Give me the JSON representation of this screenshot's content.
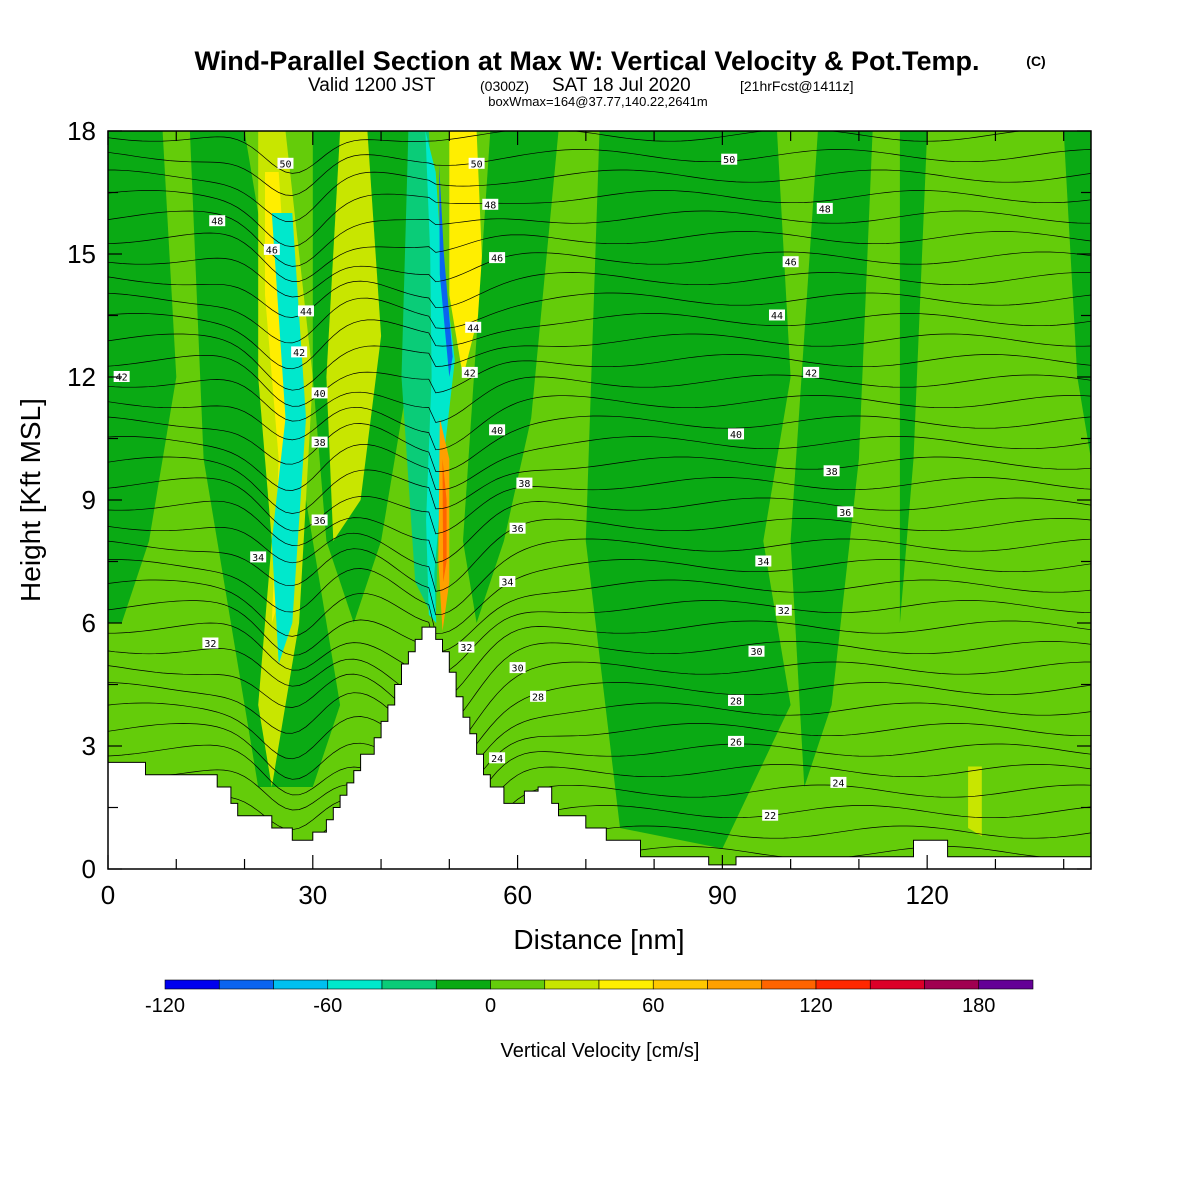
{
  "figure": {
    "title_main": "Wind-Parallel Section at Max W: Vertical Velocity & Pot.Temp.",
    "title_mark": "(C)",
    "subtitle_valid": "Valid 1200 JST",
    "subtitle_utc": "(0300Z)",
    "subtitle_date": "SAT 18 Jul 2020",
    "subtitle_fcst": "[21hrFcst@1411z]",
    "subtitle_box": "boxWmax=164@37.77,140.22,2641m"
  },
  "colorbar": {
    "label": "Vertical Velocity [cm/s]",
    "levels": [
      -120,
      -100,
      -80,
      -60,
      -40,
      -20,
      0,
      20,
      40,
      60,
      80,
      100,
      120,
      140,
      160,
      180,
      200
    ],
    "colors": [
      "#0000ee",
      "#0a64f0",
      "#00c0f0",
      "#00e8cc",
      "#0acc78",
      "#0aaa14",
      "#64cc0a",
      "#c8e600",
      "#ffee00",
      "#ffc800",
      "#ffa000",
      "#ff6400",
      "#ff2800",
      "#dc0028",
      "#a00050",
      "#640096"
    ],
    "tick_labels": [
      "-120",
      "-60",
      "0",
      "60",
      "120",
      "180"
    ]
  },
  "chart_data": {
    "type": "heatmap",
    "title": "Wind-Parallel Section at Max W: Vertical Velocity & Pot.Temp.",
    "xlabel": "Distance [nm]",
    "ylabel": "Height [Kft MSL]",
    "xlim": [
      0,
      144
    ],
    "ylim": [
      0,
      18
    ],
    "x_ticks": [
      0,
      30,
      60,
      90,
      120
    ],
    "y_ticks": [
      0,
      3,
      6,
      9,
      12,
      15,
      18
    ],
    "grid": false,
    "colorbar_label": "Vertical Velocity [cm/s]",
    "terrain_kft": [
      [
        0,
        2.6
      ],
      [
        5.5,
        2.6
      ],
      [
        5.5,
        2.3
      ],
      [
        16,
        2.3
      ],
      [
        16,
        2.0
      ],
      [
        18,
        2.0
      ],
      [
        18,
        1.6
      ],
      [
        19,
        1.6
      ],
      [
        19,
        1.3
      ],
      [
        24,
        1.3
      ],
      [
        24,
        1.0
      ],
      [
        27,
        1.0
      ],
      [
        27,
        0.7
      ],
      [
        30,
        0.7
      ],
      [
        30,
        0.9
      ],
      [
        32,
        0.9
      ],
      [
        32,
        1.2
      ],
      [
        33,
        1.2
      ],
      [
        33,
        1.5
      ],
      [
        34,
        1.5
      ],
      [
        34,
        1.8
      ],
      [
        35,
        1.8
      ],
      [
        35,
        2.1
      ],
      [
        36,
        2.1
      ],
      [
        36,
        2.4
      ],
      [
        37,
        2.4
      ],
      [
        37,
        2.8
      ],
      [
        39,
        2.8
      ],
      [
        39,
        3.2
      ],
      [
        40,
        3.2
      ],
      [
        40,
        3.6
      ],
      [
        41,
        3.6
      ],
      [
        41,
        4.0
      ],
      [
        42,
        4.0
      ],
      [
        42,
        4.5
      ],
      [
        43,
        4.5
      ],
      [
        43,
        5.0
      ],
      [
        44,
        5.0
      ],
      [
        44,
        5.3
      ],
      [
        45,
        5.3
      ],
      [
        45,
        5.6
      ],
      [
        46,
        5.6
      ],
      [
        46,
        5.9
      ],
      [
        48,
        5.9
      ],
      [
        48,
        5.6
      ],
      [
        49,
        5.6
      ],
      [
        49,
        5.3
      ],
      [
        50,
        5.3
      ],
      [
        50,
        4.8
      ],
      [
        51,
        4.8
      ],
      [
        51,
        4.2
      ],
      [
        52,
        4.2
      ],
      [
        52,
        3.7
      ],
      [
        53,
        3.7
      ],
      [
        53,
        3.3
      ],
      [
        54,
        3.3
      ],
      [
        54,
        2.8
      ],
      [
        55,
        2.8
      ],
      [
        55,
        2.3
      ],
      [
        56,
        2.3
      ],
      [
        56,
        2.0
      ],
      [
        58,
        2.0
      ],
      [
        58,
        1.6
      ],
      [
        61,
        1.6
      ],
      [
        61,
        1.9
      ],
      [
        63,
        1.9
      ],
      [
        63,
        2.0
      ],
      [
        65,
        2.0
      ],
      [
        65,
        1.6
      ],
      [
        66,
        1.6
      ],
      [
        66,
        1.3
      ],
      [
        70,
        1.3
      ],
      [
        70,
        1.0
      ],
      [
        73,
        1.0
      ],
      [
        73,
        0.7
      ],
      [
        78,
        0.7
      ],
      [
        78,
        0.3
      ],
      [
        88,
        0.3
      ],
      [
        88,
        0.1
      ],
      [
        92,
        0.1
      ],
      [
        92,
        0.3
      ],
      [
        118,
        0.3
      ],
      [
        118,
        0.7
      ],
      [
        123,
        0.7
      ],
      [
        123,
        0.3
      ],
      [
        144,
        0.3
      ]
    ],
    "wind_shading_bands": [
      {
        "value": -100,
        "xs": [
          [
            48.5,
            17.2
          ],
          [
            49.2,
            15
          ],
          [
            50.5,
            12.5
          ],
          [
            50,
            12
          ],
          [
            48.6,
            14.5
          ]
        ]
      },
      {
        "value": -60,
        "xs": [
          [
            46.5,
            18
          ],
          [
            48,
            17
          ],
          [
            48.6,
            15.5
          ],
          [
            50.8,
            12.4
          ],
          [
            49.5,
            10.5
          ],
          [
            47.8,
            7.2
          ],
          [
            48.1,
            6.0
          ],
          [
            47,
            6.2
          ],
          [
            46.6,
            8.5
          ],
          [
            47.4,
            12
          ],
          [
            47.2,
            15
          ]
        ]
      }
    ],
    "theta_contour_labels": [
      {
        "text": "50",
        "x": 26,
        "y": 17.2
      },
      {
        "text": "48",
        "x": 16,
        "y": 15.8
      },
      {
        "text": "46",
        "x": 24,
        "y": 15.1
      },
      {
        "text": "44",
        "x": 29,
        "y": 13.6
      },
      {
        "text": "42",
        "x": 28,
        "y": 12.6
      },
      {
        "text": "40",
        "x": 31,
        "y": 11.6
      },
      {
        "text": "38",
        "x": 31,
        "y": 10.4
      },
      {
        "text": "36",
        "x": 31,
        "y": 8.5
      },
      {
        "text": "34",
        "x": 22,
        "y": 7.6
      },
      {
        "text": "32",
        "x": 15,
        "y": 5.5
      },
      {
        "text": "42",
        "x": 2,
        "y": 12.0
      },
      {
        "text": "50",
        "x": 54,
        "y": 17.2
      },
      {
        "text": "48",
        "x": 56,
        "y": 16.2
      },
      {
        "text": "46",
        "x": 57,
        "y": 14.9
      },
      {
        "text": "44",
        "x": 53.5,
        "y": 13.2
      },
      {
        "text": "42",
        "x": 53,
        "y": 12.1
      },
      {
        "text": "40",
        "x": 57,
        "y": 10.7
      },
      {
        "text": "38",
        "x": 61,
        "y": 9.4
      },
      {
        "text": "36",
        "x": 60,
        "y": 8.3
      },
      {
        "text": "34",
        "x": 58.5,
        "y": 7.0
      },
      {
        "text": "32",
        "x": 52.5,
        "y": 5.4
      },
      {
        "text": "30",
        "x": 60,
        "y": 4.9
      },
      {
        "text": "28",
        "x": 63,
        "y": 4.2
      },
      {
        "text": "24",
        "x": 57,
        "y": 2.7
      },
      {
        "text": "50",
        "x": 91,
        "y": 17.3
      },
      {
        "text": "48",
        "x": 105,
        "y": 16.1
      },
      {
        "text": "46",
        "x": 100,
        "y": 14.8
      },
      {
        "text": "44",
        "x": 98,
        "y": 13.5
      },
      {
        "text": "42",
        "x": 103,
        "y": 12.1
      },
      {
        "text": "40",
        "x": 92,
        "y": 10.6
      },
      {
        "text": "38",
        "x": 106,
        "y": 9.7
      },
      {
        "text": "36",
        "x": 108,
        "y": 8.7
      },
      {
        "text": "34",
        "x": 96,
        "y": 7.5
      },
      {
        "text": "32",
        "x": 99,
        "y": 6.3
      },
      {
        "text": "30",
        "x": 95,
        "y": 5.3
      },
      {
        "text": "28",
        "x": 92,
        "y": 4.1
      },
      {
        "text": "26",
        "x": 92,
        "y": 3.1
      },
      {
        "text": "24",
        "x": 107,
        "y": 2.1
      },
      {
        "text": "22",
        "x": 97,
        "y": 1.3
      }
    ]
  }
}
